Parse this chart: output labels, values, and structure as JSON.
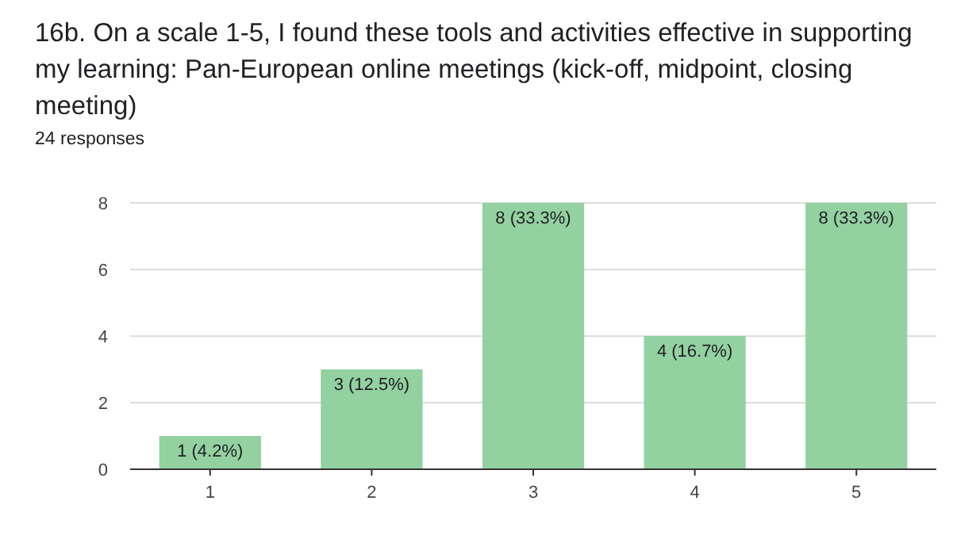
{
  "chart_data": {
    "type": "bar",
    "title": "16b. On a scale 1-5, I found these tools and activities effective in supporting my learning: Pan-European online meetings (kick-off, midpoint, closing meeting)",
    "subtitle": "24 responses",
    "categories": [
      "1",
      "2",
      "3",
      "4",
      "5"
    ],
    "values": [
      1,
      3,
      8,
      4,
      8
    ],
    "color": "#93d1a1",
    "value_labels": [
      "1 (4.2%)",
      "3 (12.5%)",
      "8 (33.3%)",
      "4 (16.7%)",
      "8 (33.3%)"
    ],
    "ylim": [
      0,
      8
    ],
    "yticks": [
      0,
      2,
      4,
      6,
      8
    ],
    "grid": "y"
  }
}
